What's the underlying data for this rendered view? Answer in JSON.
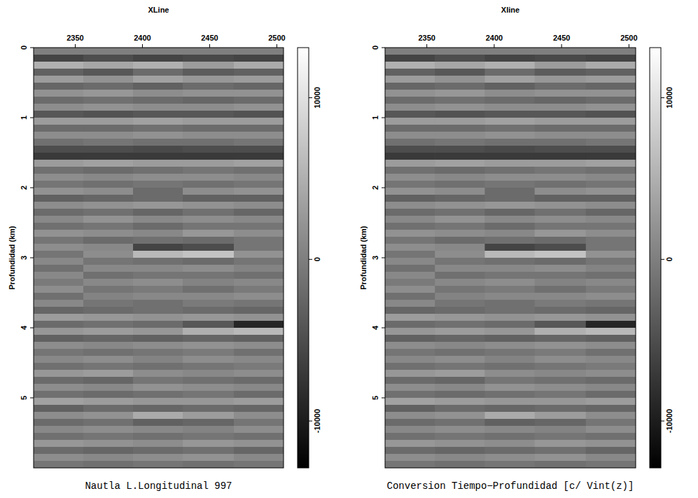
{
  "chart_data": [
    {
      "type": "heatmap",
      "title": "Nautla L.Longitudinal 997",
      "x_label": "XLine",
      "y_label": "Profundidad (km)",
      "xlim": [
        2319,
        2505
      ],
      "ylim": [
        0,
        6.0
      ],
      "xticks": [
        2350,
        2400,
        2450,
        2500
      ],
      "yticks": [
        0,
        1,
        2,
        3,
        4,
        5
      ],
      "x_bins": [
        2319,
        2356,
        2393,
        2430,
        2468,
        2505
      ],
      "y_bins": [
        0,
        0.1,
        0.2,
        0.3,
        0.4,
        0.5,
        0.6,
        0.7,
        0.8,
        0.9,
        1,
        1.1,
        1.2,
        1.3,
        1.4,
        1.5,
        1.6,
        1.7,
        1.8,
        1.9,
        2,
        2.1,
        2.2,
        2.3,
        2.4,
        2.5,
        2.6,
        2.7,
        2.8,
        2.9,
        3,
        3.1,
        3.2,
        3.3,
        3.4,
        3.5,
        3.6,
        3.7,
        3.8,
        3.9,
        4,
        4.1,
        4.2,
        4.3,
        4.4,
        4.5,
        4.6,
        4.7,
        4.8,
        4.9,
        5,
        5.1,
        5.2,
        5.3,
        5.4,
        5.5,
        5.6,
        5.7,
        5.8,
        5.9,
        6
      ],
      "cells": [
        [
          0,
          0,
          0,
          0,
          0
        ],
        [
          -6000,
          -5000,
          -6000,
          -5500,
          -6000
        ],
        [
          5000,
          4000,
          5000,
          3000,
          4500
        ],
        [
          -3000,
          -4000,
          -2000,
          -3500,
          -3000
        ],
        [
          3000,
          2000,
          3500,
          2500,
          3000
        ],
        [
          -2500,
          -2000,
          -3000,
          -2000,
          -2500
        ],
        [
          2000,
          2500,
          1500,
          2000,
          2000
        ],
        [
          -2000,
          -1500,
          -2000,
          -2500,
          -2000
        ],
        [
          1500,
          2000,
          1500,
          1500,
          2000
        ],
        [
          -4000,
          -4500,
          -4000,
          -4000,
          -4500
        ],
        [
          3000,
          3000,
          3500,
          3000,
          3000
        ],
        [
          -2000,
          -2000,
          -1500,
          -2000,
          -2000
        ],
        [
          1500,
          1500,
          2000,
          1500,
          1500
        ],
        [
          -1500,
          -1000,
          -1500,
          -1500,
          -1000
        ],
        [
          -5000,
          -5000,
          -5500,
          -5000,
          -5000
        ],
        [
          -7000,
          -7000,
          -7000,
          -7000,
          -7000
        ],
        [
          3000,
          3500,
          3000,
          3000,
          3500
        ],
        [
          -1500,
          -2000,
          -1500,
          -1000,
          -1500
        ],
        [
          1500,
          1000,
          1500,
          1500,
          1000
        ],
        [
          -1000,
          -1500,
          -1000,
          -1500,
          -1000
        ],
        [
          2000,
          1500,
          -2000,
          1500,
          2000
        ],
        [
          -3000,
          -2500,
          -2000,
          -3000,
          -3000
        ],
        [
          1500,
          2000,
          2500,
          2000,
          1500
        ],
        [
          -2000,
          -1500,
          -2500,
          -1500,
          -2500
        ],
        [
          1000,
          2000,
          1000,
          1500,
          1000
        ],
        [
          -1500,
          -1000,
          -2000,
          -1000,
          -1000
        ],
        [
          2000,
          1500,
          1000,
          2500,
          1500
        ],
        [
          -1000,
          -2000,
          -1500,
          -2000,
          -1000
        ],
        [
          1500,
          1000,
          -6000,
          -5000,
          -1000
        ],
        [
          -1000,
          1500,
          6000,
          7000,
          2000
        ],
        [
          1000,
          -1000,
          -1500,
          -2000,
          -1000
        ],
        [
          -1500,
          1000,
          1000,
          1500,
          500
        ],
        [
          1000,
          -1500,
          -1000,
          -1000,
          -1500
        ],
        [
          -500,
          1000,
          1500,
          500,
          1000
        ],
        [
          1500,
          -1000,
          -500,
          -1500,
          -500
        ],
        [
          -1500,
          500,
          1000,
          1000,
          1500
        ],
        [
          1000,
          -1000,
          -1500,
          -500,
          -1000
        ],
        [
          -2500,
          -2000,
          -1500,
          -2000,
          -2500
        ],
        [
          3000,
          2500,
          2000,
          2500,
          2000
        ],
        [
          -2000,
          -1500,
          -2000,
          -4000,
          -9000
        ],
        [
          2500,
          3000,
          2500,
          5000,
          6000
        ],
        [
          -3000,
          -2500,
          -3000,
          -2500,
          -3000
        ],
        [
          1500,
          1000,
          1500,
          2000,
          1500
        ],
        [
          -1000,
          -1500,
          -1000,
          -500,
          -1500
        ],
        [
          1000,
          1500,
          500,
          1500,
          1000
        ],
        [
          -1500,
          -1000,
          -1500,
          -1000,
          -500
        ],
        [
          2500,
          3000,
          1500,
          1000,
          1500
        ],
        [
          -2000,
          -2500,
          -1000,
          -1500,
          -2000
        ],
        [
          1500,
          1000,
          2000,
          1500,
          1000
        ],
        [
          -1500,
          -2000,
          -1500,
          -1000,
          -2000
        ],
        [
          3500,
          3000,
          2500,
          2500,
          3000
        ],
        [
          -3000,
          -2000,
          -2500,
          -2000,
          -2500
        ],
        [
          1500,
          2000,
          4500,
          3000,
          1500
        ],
        [
          -2000,
          -1500,
          -3000,
          -2500,
          -1000
        ],
        [
          1000,
          1500,
          1000,
          500,
          1500
        ],
        [
          -1500,
          -1000,
          -1500,
          -1000,
          -1500
        ],
        [
          2500,
          2000,
          1500,
          2500,
          2000
        ],
        [
          -2000,
          -2500,
          -2000,
          -1500,
          -2500
        ],
        [
          1500,
          1000,
          1500,
          2000,
          1000
        ],
        [
          -1000,
          -1500,
          -1000,
          -1500,
          -1000
        ]
      ],
      "colorbar_range": [
        -12900,
        13100
      ],
      "colorbar_ticks": [
        -10000,
        0,
        10000
      ]
    },
    {
      "type": "heatmap",
      "title": "Conversion Tiempo−Profundidad [c/ Vint(z)]",
      "x_label": "Xline",
      "y_label": "Profundidad (km)",
      "xlim": [
        2319,
        2505
      ],
      "ylim": [
        0,
        6.0
      ],
      "xticks": [
        2350,
        2400,
        2450,
        2500
      ],
      "yticks": [
        0,
        1,
        2,
        3,
        4,
        5
      ],
      "x_bins": [
        2319,
        2356,
        2393,
        2430,
        2468,
        2505
      ],
      "y_bins": [
        0,
        0.1,
        0.2,
        0.3,
        0.4,
        0.5,
        0.6,
        0.7,
        0.8,
        0.9,
        1,
        1.1,
        1.2,
        1.3,
        1.4,
        1.5,
        1.6,
        1.7,
        1.8,
        1.9,
        2,
        2.1,
        2.2,
        2.3,
        2.4,
        2.5,
        2.6,
        2.7,
        2.8,
        2.9,
        3,
        3.1,
        3.2,
        3.3,
        3.4,
        3.5,
        3.6,
        3.7,
        3.8,
        3.9,
        4,
        4.1,
        4.2,
        4.3,
        4.4,
        4.5,
        4.6,
        4.7,
        4.8,
        4.9,
        5,
        5.1,
        5.2,
        5.3,
        5.4,
        5.5,
        5.6,
        5.7,
        5.8,
        5.9,
        6
      ],
      "cells": [
        [
          0,
          0,
          0,
          0,
          0
        ],
        [
          -6000,
          -5000,
          -6000,
          -5500,
          -6000
        ],
        [
          5000,
          4000,
          5000,
          3000,
          4500
        ],
        [
          -3000,
          -4000,
          -2000,
          -3500,
          -3000
        ],
        [
          3000,
          2000,
          3500,
          2500,
          3000
        ],
        [
          -2500,
          -2000,
          -3000,
          -2000,
          -2500
        ],
        [
          2000,
          2500,
          1500,
          2000,
          2000
        ],
        [
          -2000,
          -1500,
          -2000,
          -2500,
          -2000
        ],
        [
          1500,
          2000,
          1500,
          1500,
          2000
        ],
        [
          -4000,
          -4500,
          -4000,
          -4000,
          -4500
        ],
        [
          3000,
          3000,
          3500,
          3000,
          3000
        ],
        [
          -2000,
          -2000,
          -1500,
          -2000,
          -2000
        ],
        [
          1500,
          1500,
          2000,
          1500,
          1500
        ],
        [
          -1500,
          -1000,
          -1500,
          -1500,
          -1000
        ],
        [
          -5000,
          -5000,
          -5500,
          -5000,
          -5000
        ],
        [
          -7000,
          -7000,
          -7000,
          -7000,
          -7000
        ],
        [
          3000,
          3500,
          3000,
          3000,
          3500
        ],
        [
          -1500,
          -2000,
          -1500,
          -1000,
          -1500
        ],
        [
          1500,
          1000,
          1500,
          1500,
          1000
        ],
        [
          -1000,
          -1500,
          -1000,
          -1500,
          -1000
        ],
        [
          2000,
          1500,
          -2000,
          1500,
          2000
        ],
        [
          -3000,
          -2500,
          -2000,
          -3000,
          -3000
        ],
        [
          1500,
          2000,
          2500,
          2000,
          1500
        ],
        [
          -2000,
          -1500,
          -2500,
          -1500,
          -2500
        ],
        [
          1000,
          2000,
          1000,
          1500,
          1000
        ],
        [
          -1500,
          -1000,
          -2000,
          -1000,
          -1000
        ],
        [
          2000,
          1500,
          1000,
          2500,
          1500
        ],
        [
          -1000,
          -2000,
          -1500,
          -2000,
          -1000
        ],
        [
          1500,
          1000,
          -6000,
          -5000,
          -1000
        ],
        [
          -1000,
          1500,
          6000,
          7000,
          2000
        ],
        [
          1000,
          -1000,
          -1500,
          -2000,
          -1000
        ],
        [
          -1500,
          1000,
          1000,
          1500,
          500
        ],
        [
          1000,
          -1500,
          -1000,
          -1000,
          -1500
        ],
        [
          -500,
          1000,
          1500,
          500,
          1000
        ],
        [
          1500,
          -1000,
          -500,
          -1500,
          -500
        ],
        [
          -1500,
          500,
          1000,
          1000,
          1500
        ],
        [
          1000,
          -1000,
          -1500,
          -500,
          -1000
        ],
        [
          -2500,
          -2000,
          -1500,
          -2000,
          -2500
        ],
        [
          3000,
          2500,
          2000,
          2500,
          2000
        ],
        [
          -2000,
          -1500,
          -2000,
          -4000,
          -9000
        ],
        [
          2500,
          3000,
          2500,
          5000,
          6000
        ],
        [
          -3000,
          -2500,
          -3000,
          -2500,
          -3000
        ],
        [
          1500,
          1000,
          1500,
          2000,
          1500
        ],
        [
          -1000,
          -1500,
          -1000,
          -500,
          -1500
        ],
        [
          1000,
          1500,
          500,
          1500,
          1000
        ],
        [
          -1500,
          -1000,
          -1500,
          -1000,
          -500
        ],
        [
          2500,
          3000,
          1500,
          1000,
          1500
        ],
        [
          -2000,
          -2500,
          -1000,
          -1500,
          -2000
        ],
        [
          1500,
          1000,
          2000,
          1500,
          1000
        ],
        [
          -1500,
          -2000,
          -1500,
          -1000,
          -2000
        ],
        [
          3500,
          3000,
          2500,
          2500,
          3000
        ],
        [
          -3000,
          -2000,
          -2500,
          -2000,
          -2500
        ],
        [
          1500,
          2000,
          4500,
          3000,
          1500
        ],
        [
          -2000,
          -1500,
          -3000,
          -2500,
          -1000
        ],
        [
          1000,
          1500,
          1000,
          500,
          1500
        ],
        [
          -1500,
          -1000,
          -1500,
          -1000,
          -1500
        ],
        [
          2500,
          2000,
          1500,
          2500,
          2000
        ],
        [
          -2000,
          -2500,
          -2000,
          -1500,
          -2500
        ],
        [
          1500,
          1000,
          1500,
          2000,
          1000
        ],
        [
          -1000,
          -1500,
          -1000,
          -1500,
          -1000
        ]
      ],
      "colorbar_range": [
        -12900,
        13100
      ],
      "colorbar_ticks": [
        -10000,
        0,
        10000
      ]
    }
  ]
}
